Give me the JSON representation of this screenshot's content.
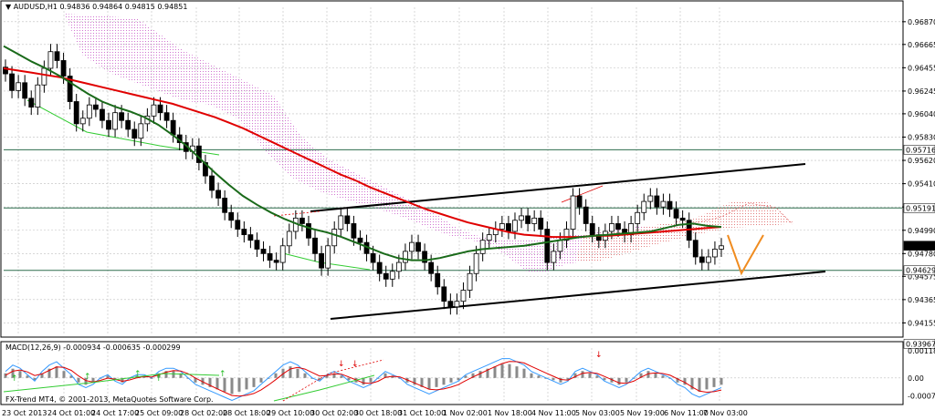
{
  "chart_data": [
    {
      "type": "candlestick",
      "header": {
        "symbol_label": "AUDUSD,H1",
        "ohlc": "0.94836 0.94864 0.94815 0.94851"
      },
      "x_ticks": [
        "23 Oct 2013",
        "24 Oct 01:00",
        "24 Oct 17:00",
        "25 Oct 09:00",
        "28 Oct 02:00",
        "28 Oct 18:00",
        "29 Oct 10:00",
        "30 Oct 02:00",
        "30 Oct 18:00",
        "31 Oct 10:00",
        "1 Nov 02:00",
        "1 Nov 18:00",
        "4 Nov 11:00",
        "5 Nov 03:00",
        "5 Nov 19:00",
        "6 Nov 11:00",
        "7 Nov 03:00"
      ],
      "y_ticks": [
        "0.96870",
        "0.96665",
        "0.96455",
        "0.96245",
        "0.96040",
        "0.95830",
        "0.95620",
        "0.95410",
        "0.95200",
        "0.94990",
        "0.94780",
        "0.94575",
        "0.94365",
        "0.94155"
      ],
      "ylim": [
        0.9406,
        0.97
      ],
      "level_labels": [
        {
          "label": "0.95716",
          "value": 0.95716,
          "color": "#2e6e4e"
        },
        {
          "label": "0.95191",
          "value": 0.95191,
          "color": "#2e6e4e"
        },
        {
          "label": "0.94851",
          "value": 0.94851,
          "color": "#000000"
        },
        {
          "label": "0.94629",
          "value": 0.94629,
          "color": "#2e6e4e"
        },
        {
          "label": "0.93967",
          "value": 0.93967,
          "color": "#000000"
        }
      ],
      "close_series": [
        0.964,
        0.9625,
        0.9632,
        0.9618,
        0.961,
        0.963,
        0.9645,
        0.966,
        0.9652,
        0.9638,
        0.9615,
        0.9595,
        0.96,
        0.9612,
        0.9608,
        0.9598,
        0.959,
        0.9605,
        0.9598,
        0.959,
        0.9582,
        0.9595,
        0.9602,
        0.9612,
        0.9605,
        0.9598,
        0.9585,
        0.9578,
        0.957,
        0.9575,
        0.956,
        0.9548,
        0.9535,
        0.9528,
        0.9515,
        0.9508,
        0.95,
        0.9495,
        0.949,
        0.9482,
        0.9478,
        0.9472,
        0.947,
        0.9485,
        0.9498,
        0.951,
        0.9505,
        0.9492,
        0.9478,
        0.9465,
        0.9485,
        0.95,
        0.9512,
        0.9505,
        0.9492,
        0.9488,
        0.9478,
        0.947,
        0.946,
        0.9455,
        0.9462,
        0.947,
        0.948,
        0.9488,
        0.948,
        0.947,
        0.946,
        0.9448,
        0.9435,
        0.943,
        0.9435,
        0.9445,
        0.946,
        0.9478,
        0.949,
        0.9495,
        0.95,
        0.9505,
        0.9498,
        0.9508,
        0.9512,
        0.9505,
        0.951,
        0.95,
        0.947,
        0.948,
        0.949,
        0.95,
        0.953,
        0.952,
        0.9505,
        0.9495,
        0.949,
        0.9498,
        0.9505,
        0.95,
        0.9495,
        0.9505,
        0.9515,
        0.9525,
        0.953,
        0.952,
        0.9525,
        0.9518,
        0.951,
        0.9508,
        0.949,
        0.9475,
        0.947,
        0.9475,
        0.9482,
        0.9485
      ],
      "ma_red": [
        0.9645,
        0.9643,
        0.9641,
        0.9639,
        0.9637,
        0.9634,
        0.9631,
        0.9628,
        0.9625,
        0.9622,
        0.9619,
        0.9616,
        0.9613,
        0.9609,
        0.9605,
        0.9601,
        0.9596,
        0.9591,
        0.9585,
        0.9579,
        0.9573,
        0.9567,
        0.9561,
        0.9555,
        0.9549,
        0.9544,
        0.9538,
        0.9533,
        0.9528,
        0.9523,
        0.9518,
        0.9514,
        0.951,
        0.9506,
        0.9503,
        0.95,
        0.9497,
        0.9495,
        0.9494,
        0.9493,
        0.9493,
        0.9493,
        0.9494,
        0.9494,
        0.9495,
        0.9496,
        0.9497,
        0.9498,
        0.9499,
        0.95,
        0.9501,
        0.9502
      ],
      "ma_green": [
        0.9665,
        0.9658,
        0.9651,
        0.9645,
        0.9638,
        0.963,
        0.9622,
        0.9615,
        0.961,
        0.9606,
        0.9601,
        0.9594,
        0.9585,
        0.9575,
        0.9563,
        0.9551,
        0.954,
        0.953,
        0.9522,
        0.9515,
        0.9509,
        0.9504,
        0.95,
        0.9497,
        0.9493,
        0.9488,
        0.9483,
        0.9478,
        0.9474,
        0.9472,
        0.9472,
        0.9474,
        0.9477,
        0.948,
        0.9482,
        0.9483,
        0.9484,
        0.9485,
        0.9487,
        0.9489,
        0.9491,
        0.9493,
        0.9494,
        0.9495,
        0.9496,
        0.9497,
        0.9498,
        0.9501,
        0.9504,
        0.9505,
        0.9503,
        0.9502
      ]
    },
    {
      "type": "macd",
      "label": "MACD(12,26,9) -0.000934 -0.000635 -0.000299",
      "y_ticks": [
        "0.001183",
        "0.00",
        "-0.000784"
      ],
      "ylim": [
        -0.001,
        0.0013
      ],
      "histogram": [
        0.0002,
        0.0004,
        0.0003,
        0.0001,
        -0.0001,
        0.0002,
        0.0004,
        0.0005,
        0.0003,
        0.0001,
        -0.0002,
        -0.0003,
        -0.0002,
        0.0,
        0.0001,
        -0.0001,
        -0.0002,
        0.0,
        0.0001,
        0.0001,
        0.0,
        0.0002,
        0.0003,
        0.0003,
        0.0002,
        0.0,
        -0.0002,
        -0.0003,
        -0.0004,
        -0.0005,
        -0.0006,
        -0.0007,
        -0.0006,
        -0.0005,
        -0.0004,
        -0.0002,
        0.0,
        0.0002,
        0.0004,
        0.0005,
        0.0004,
        0.0002,
        0.0,
        -0.0001,
        0.0001,
        0.0002,
        0.0001,
        -0.0001,
        -0.0002,
        -0.0003,
        -0.0002,
        0.0,
        0.0002,
        0.0001,
        0.0,
        -0.0002,
        -0.0003,
        -0.0004,
        -0.0005,
        -0.0004,
        -0.0003,
        -0.0002,
        -0.0001,
        0.0001,
        0.0002,
        0.0003,
        0.0004,
        0.0005,
        0.0006,
        0.0006,
        0.0005,
        0.0004,
        0.0002,
        0.0001,
        0.0,
        -0.0001,
        -0.0002,
        -0.0001,
        0.0002,
        0.0003,
        0.0002,
        0.0001,
        -0.0001,
        -0.0002,
        -0.0003,
        -0.0002,
        0.0,
        0.0002,
        0.0003,
        0.0002,
        0.0001,
        0.0,
        -0.0002,
        -0.0003,
        -0.0005,
        -0.0006,
        -0.0005,
        -0.0004,
        -0.0003
      ],
      "copyright": "FX-Trend MT4, © 2001-2013, MetaQuotes Software Corp."
    }
  ],
  "colors": {
    "candle": "#000000",
    "ma_red": "#e00000",
    "ma_green": "#1a6a1a",
    "cloud": "#cc66cc",
    "cloud_red": "#e06060",
    "support_green": "#33cc33",
    "level_line": "#2e6e4e",
    "orange_v": "#f08c20",
    "macd_blue": "#3399ff"
  }
}
